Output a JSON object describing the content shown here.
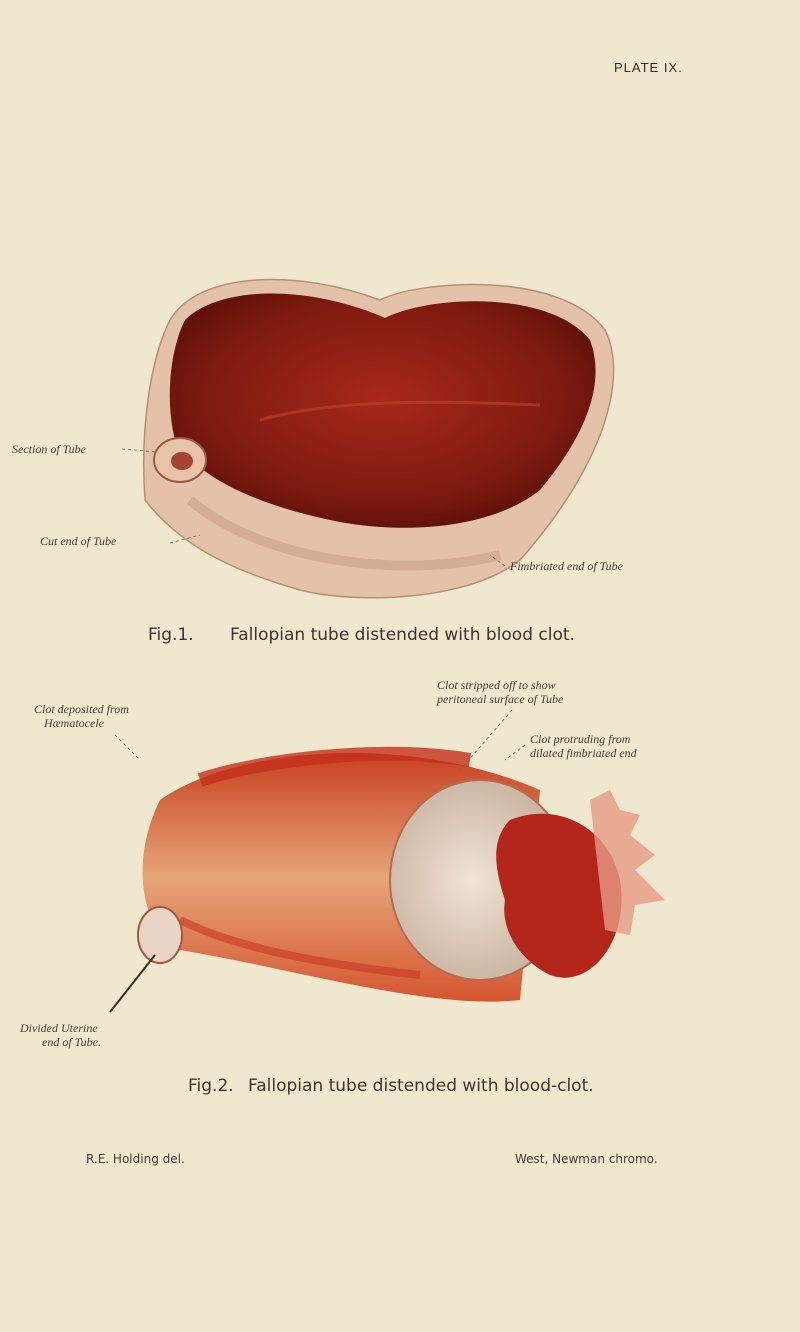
{
  "plate": "PLATE IX.",
  "figure1": {
    "labels": {
      "section": "Section of Tube",
      "cut_end": "Cut end of Tube",
      "fimbriated_end": "Fimbriated end of Tube"
    },
    "number": "Fig.1.",
    "caption": "Fallopian tube distended with blood clot."
  },
  "figure2": {
    "labels": {
      "clot_deposited": [
        "Clot deposited from",
        "Hæmatocele"
      ],
      "clot_stripped": [
        "Clot stripped off to show",
        "peritoneal surface of Tube"
      ],
      "clot_protruding": [
        "Clot protruding from",
        "dilated fimbriated end"
      ],
      "uterine_end": [
        "Divided Uterine",
        "end of Tube."
      ]
    },
    "number": "Fig.2.",
    "caption": "Fallopian tube distended with blood-clot."
  },
  "credits": {
    "artist": "R.E. Holding del.",
    "printer": "West, Newman chromo."
  }
}
